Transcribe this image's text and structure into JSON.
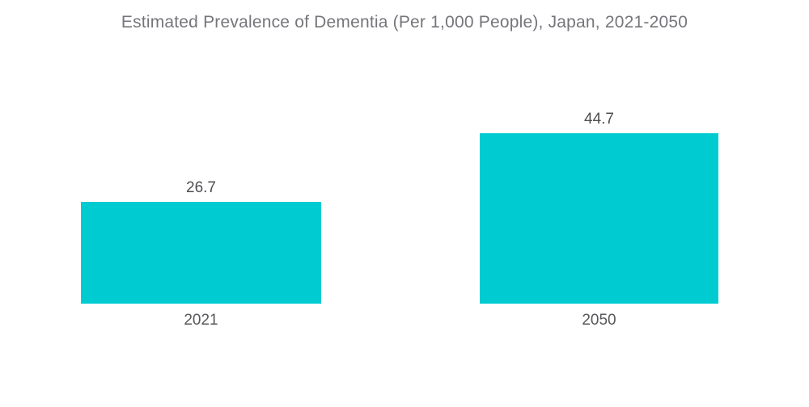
{
  "chart_data": {
    "type": "bar",
    "orientation": "vertical",
    "title": "Estimated Prevalence of Dementia (Per 1,000 People), Japan, 2021-2050",
    "categories": [
      "2021",
      "2050"
    ],
    "values": [
      26.7,
      44.7
    ],
    "series": [
      {
        "name": "Estimated Prevalence of Dementia (Per 1,000 People)",
        "values": [
          26.7,
          44.7
        ]
      }
    ],
    "xlabel": "",
    "ylabel": "",
    "ylim": [
      0,
      47
    ],
    "grid": false,
    "legend": false,
    "data_labels_position": "above-bars",
    "bar_color": "#00CBD1",
    "title_color": "#75757B",
    "value_label_color": "#4E4E52",
    "category_label_color": "#58585C",
    "background_color": "#FFFFFF"
  }
}
